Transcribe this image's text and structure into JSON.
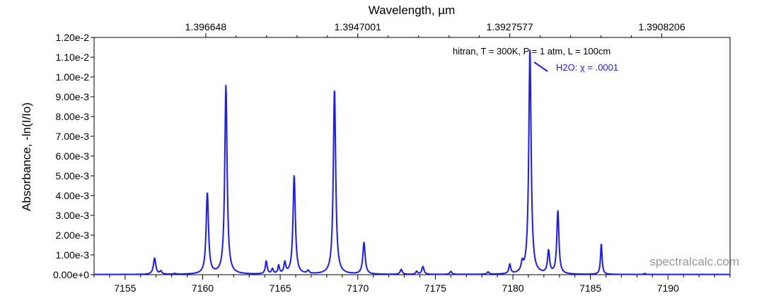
{
  "chart_data": {
    "type": "line",
    "title": "",
    "xlabel": "",
    "ylabel": "Absorbance, -ln(I/Io)",
    "top_axis_label": "Wavelength, µm",
    "top_tick_labels": [
      {
        "at": 7160.2,
        "label": "1.396648"
      },
      {
        "at": 7170.0,
        "label": "1.3947001"
      },
      {
        "at": 7179.8,
        "label": "1.3927577"
      },
      {
        "at": 7189.6,
        "label": "1.3908206"
      }
    ],
    "xlim": [
      7153,
      7194
    ],
    "ylim": [
      0,
      0.012
    ],
    "x_ticks": [
      7155,
      7160,
      7165,
      7170,
      7175,
      7180,
      7185,
      7190
    ],
    "x_tick_labels": [
      "7155",
      "7160",
      "7165",
      "7170",
      "7175",
      "7180",
      "7185",
      "7190"
    ],
    "y_ticks": [
      0,
      0.001,
      0.002,
      0.003,
      0.004,
      0.005,
      0.006,
      0.007,
      0.008,
      0.009,
      0.01,
      0.011,
      0.012
    ],
    "y_tick_labels": [
      "0.00e+0",
      "1.00e-3",
      "2.00e-3",
      "3.00e-3",
      "4.00e-3",
      "5.00e-3",
      "6.00e-3",
      "7.00e-3",
      "8.00e-3",
      "9.00e-3",
      "1.00e-2",
      "1.10e-2",
      "1.20e-2"
    ],
    "grid": false,
    "legend_position": "top-right",
    "annotation": "hitran, T = 300K, P = 1 atm, L = 100cm",
    "series": [
      {
        "name": "H2O: χ = .0001",
        "color": "#1a1aff",
        "baseline": 1e-05,
        "peaks": [
          {
            "x": 7156.9,
            "y": 0.00082,
            "w": 0.09
          },
          {
            "x": 7157.3,
            "y": 0.00015,
            "w": 0.08
          },
          {
            "x": 7158.2,
            "y": 4e-05,
            "w": 0.07
          },
          {
            "x": 7160.3,
            "y": 0.00412,
            "w": 0.09
          },
          {
            "x": 7161.5,
            "y": 0.00955,
            "w": 0.09
          },
          {
            "x": 7164.1,
            "y": 0.00065,
            "w": 0.07
          },
          {
            "x": 7164.5,
            "y": 0.00025,
            "w": 0.07
          },
          {
            "x": 7164.9,
            "y": 0.00042,
            "w": 0.06
          },
          {
            "x": 7165.3,
            "y": 0.00055,
            "w": 0.07
          },
          {
            "x": 7165.9,
            "y": 0.005,
            "w": 0.09
          },
          {
            "x": 7166.8,
            "y": 0.00015,
            "w": 0.08
          },
          {
            "x": 7168.5,
            "y": 0.0094,
            "w": 0.09
          },
          {
            "x": 7170.4,
            "y": 0.0016,
            "w": 0.09
          },
          {
            "x": 7172.8,
            "y": 0.00025,
            "w": 0.08
          },
          {
            "x": 7173.8,
            "y": 0.00015,
            "w": 0.07
          },
          {
            "x": 7174.2,
            "y": 0.0004,
            "w": 0.08
          },
          {
            "x": 7176.0,
            "y": 0.00015,
            "w": 0.08
          },
          {
            "x": 7178.4,
            "y": 0.00012,
            "w": 0.07
          },
          {
            "x": 7179.8,
            "y": 0.00048,
            "w": 0.07
          },
          {
            "x": 7180.6,
            "y": 0.00045,
            "w": 0.08
          },
          {
            "x": 7181.1,
            "y": 0.0114,
            "w": 0.09
          },
          {
            "x": 7182.3,
            "y": 0.00115,
            "w": 0.08
          },
          {
            "x": 7182.9,
            "y": 0.0032,
            "w": 0.08
          },
          {
            "x": 7185.7,
            "y": 0.00155,
            "w": 0.06
          },
          {
            "x": 7188.5,
            "y": 5e-05,
            "w": 0.06
          }
        ]
      }
    ]
  },
  "watermark": "spectralcalc.com"
}
